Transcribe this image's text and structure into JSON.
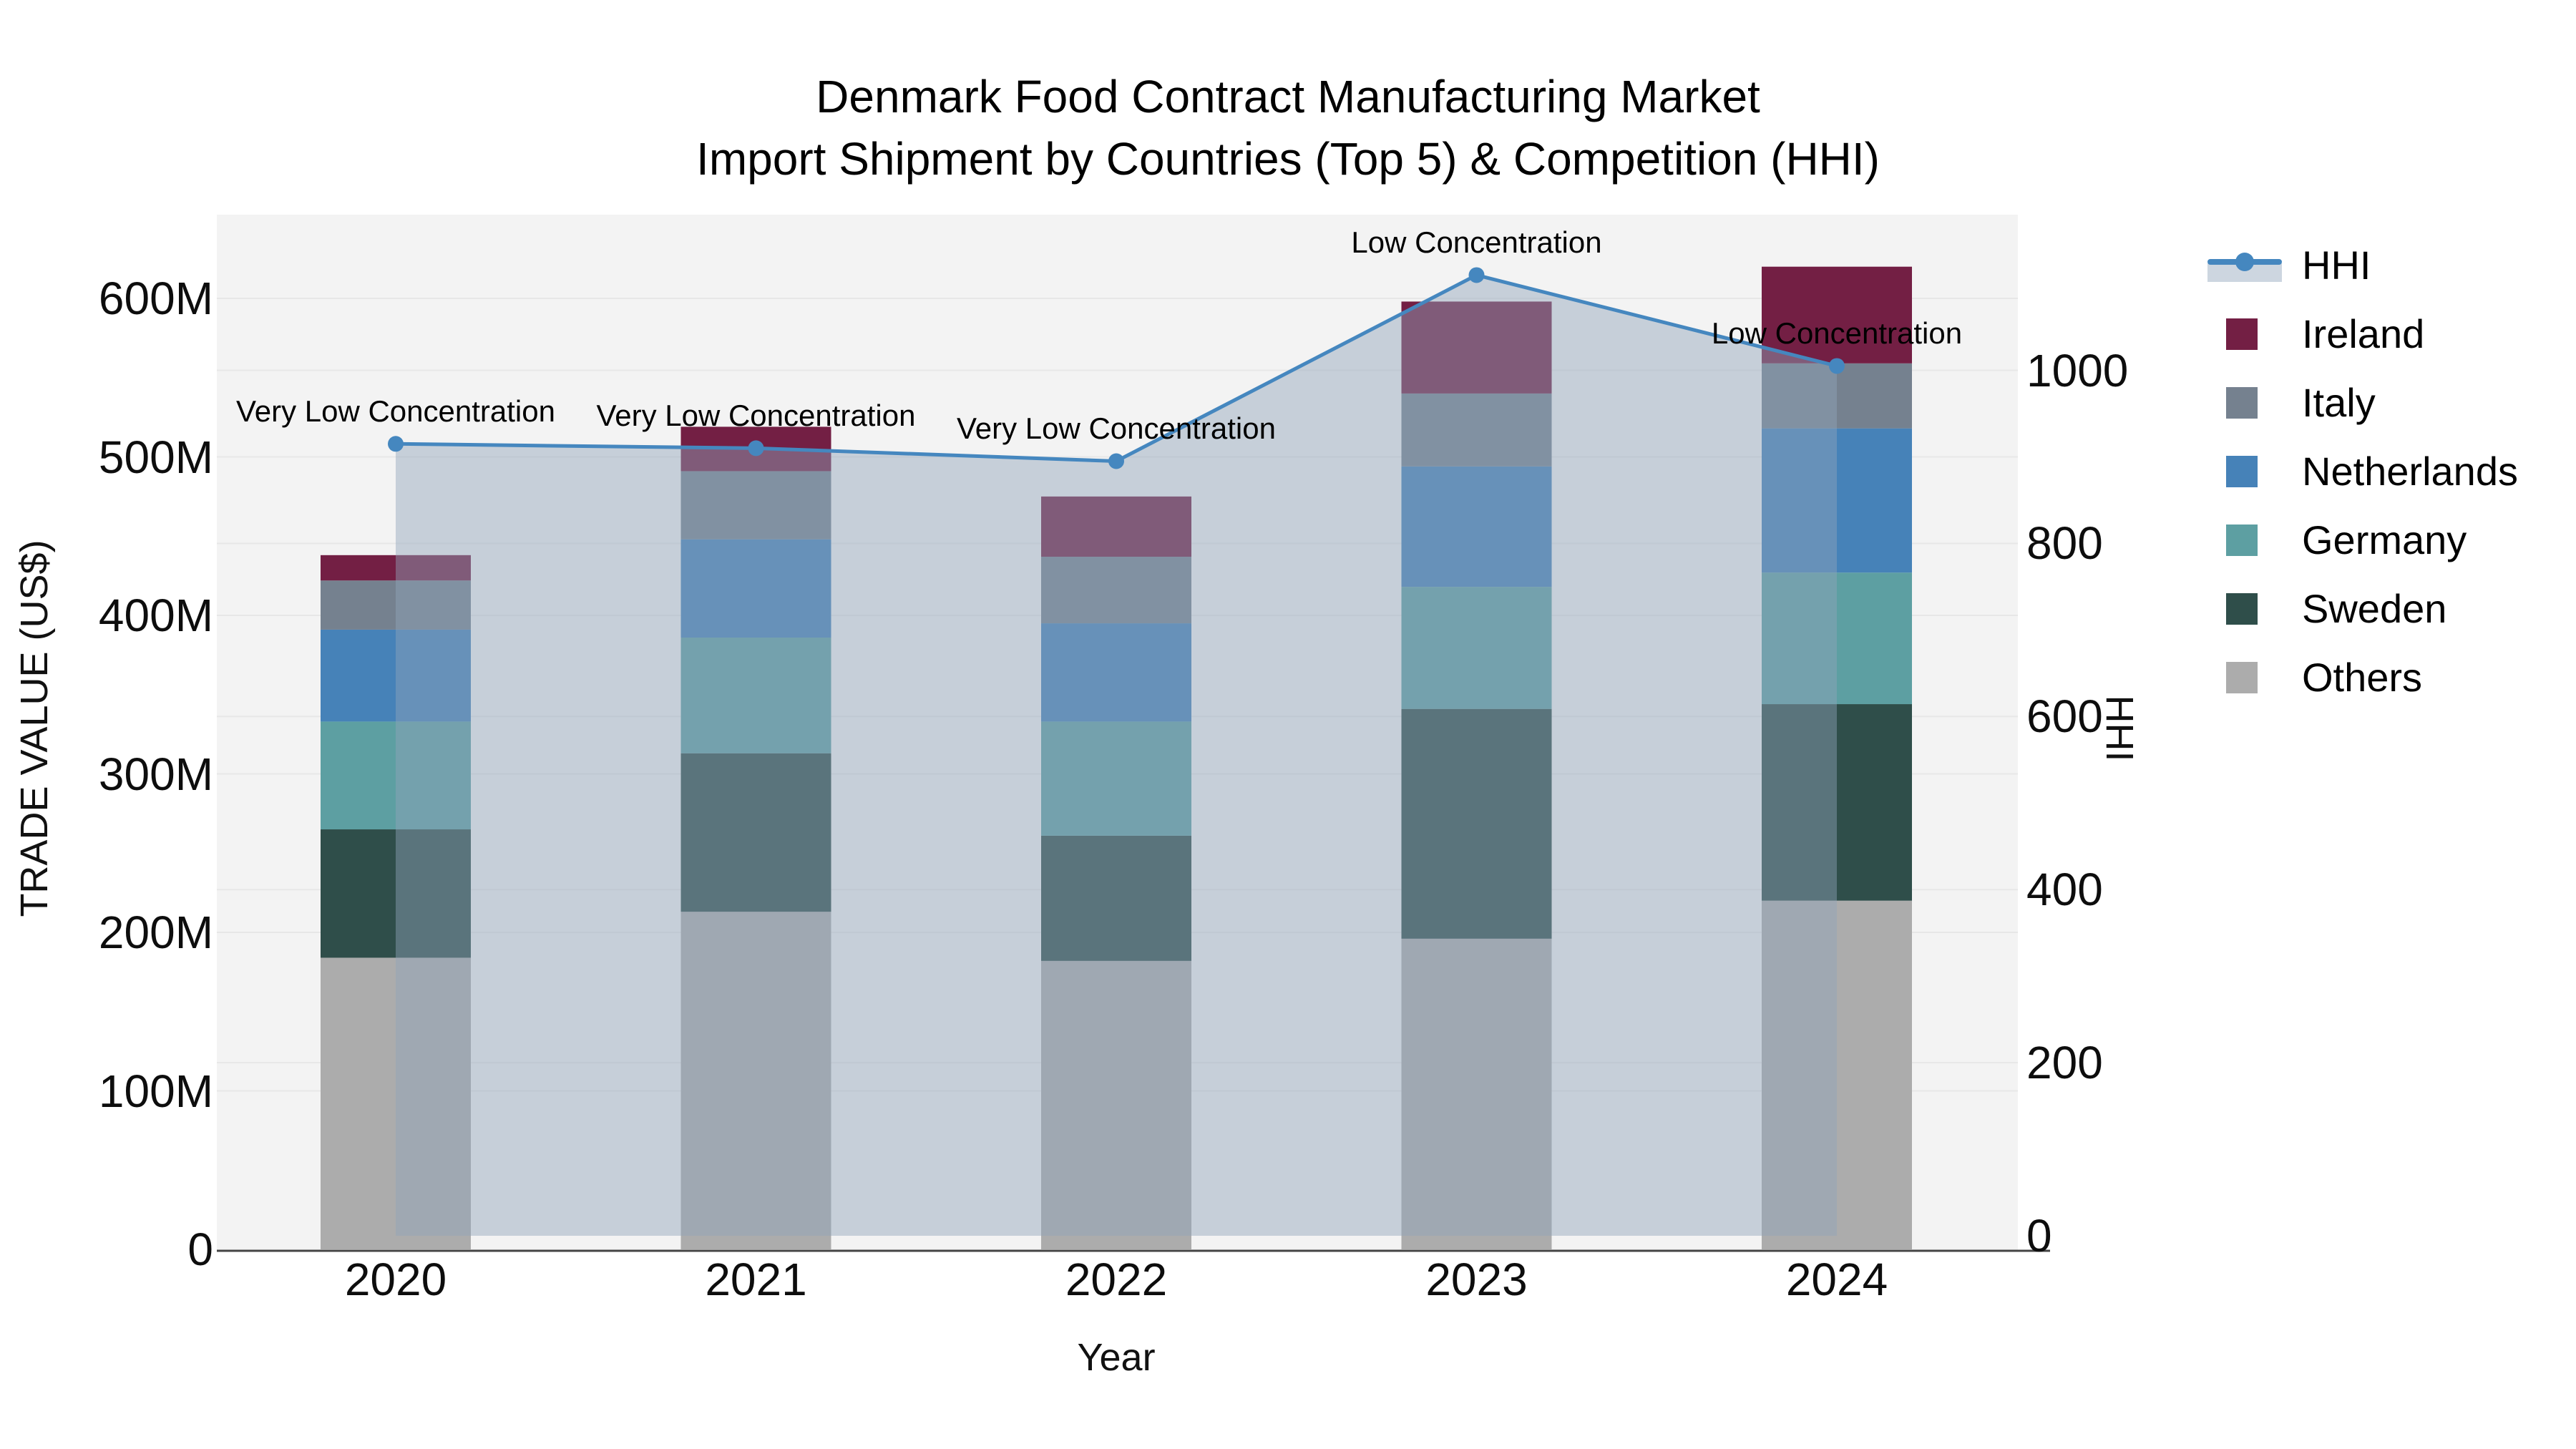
{
  "title": {
    "line1": "Denmark Food Contract Manufacturing Market",
    "line2": "Import Shipment by Countries (Top 5) & Competition (HHI)"
  },
  "chart_data": {
    "type": "bar",
    "subtype": "stacked bars with dual-axis HHI line overlay",
    "categories": [
      "2020",
      "2021",
      "2022",
      "2023",
      "2024"
    ],
    "value_unit": "US$ millions",
    "series": [
      {
        "name": "Ireland",
        "color": "#731f44",
        "values": [
          16,
          28,
          38,
          58,
          61
        ]
      },
      {
        "name": "Italy",
        "color": "#75818f",
        "values": [
          31,
          43,
          42,
          46,
          41
        ]
      },
      {
        "name": "Netherlands",
        "color": "#4682b8",
        "values": [
          58,
          62,
          62,
          76,
          91
        ]
      },
      {
        "name": "Germany",
        "color": "#5d9fa2",
        "values": [
          68,
          73,
          72,
          77,
          83
        ]
      },
      {
        "name": "Sweden",
        "color": "#2f4e4a",
        "values": [
          81,
          100,
          79,
          145,
          124
        ]
      },
      {
        "name": "Others",
        "color": "#acacac",
        "values": [
          184,
          213,
          182,
          196,
          220
        ]
      }
    ],
    "stack_totals_millions": [
      438,
      519,
      475,
      598,
      620
    ],
    "hhi": {
      "name": "HHI",
      "line_color": "#4587bf",
      "area_fill": "rgba(144,164,186,0.45)",
      "values": [
        915,
        910,
        895,
        1110,
        1005
      ]
    },
    "annotations": [
      {
        "category": "2020",
        "text": "Very Low Concentration"
      },
      {
        "category": "2021",
        "text": "Very Low Concentration"
      },
      {
        "category": "2022",
        "text": "Very Low Concentration"
      },
      {
        "category": "2023",
        "text": "Low Concentration"
      },
      {
        "category": "2024",
        "text": "Low Concentration"
      }
    ],
    "left_axis": {
      "label": "TRADE VALUE (US$)",
      "ticks": [
        {
          "label": "0",
          "value": 0
        },
        {
          "label": "100M",
          "value": 100
        },
        {
          "label": "200M",
          "value": 200
        },
        {
          "label": "300M",
          "value": 300
        },
        {
          "label": "400M",
          "value": 400
        },
        {
          "label": "500M",
          "value": 500
        },
        {
          "label": "600M",
          "value": 600
        }
      ]
    },
    "right_axis": {
      "label": "HHI",
      "ticks": [
        {
          "label": "0",
          "value": 0
        },
        {
          "label": "200",
          "value": 200
        },
        {
          "label": "400",
          "value": 400
        },
        {
          "label": "600",
          "value": 600
        },
        {
          "label": "800",
          "value": 800
        },
        {
          "label": "1000",
          "value": 1000
        }
      ]
    },
    "x_axis": {
      "label": "Year"
    },
    "legend_position": "right",
    "grid": true,
    "colors": {
      "plot_background": "#f3f3f3",
      "gridline": "#e7e7e7",
      "axis_line": "#444444"
    }
  }
}
